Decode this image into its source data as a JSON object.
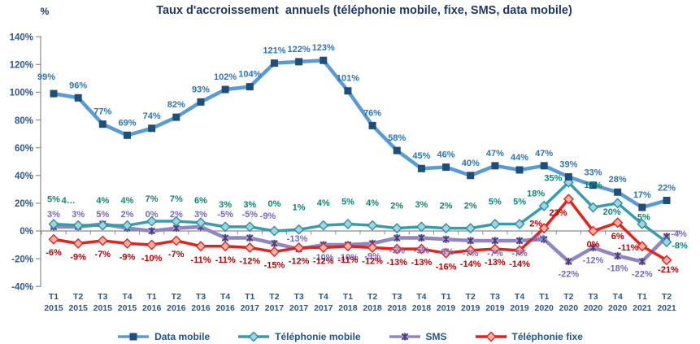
{
  "title": "Taux d'accroissement  annuels (téléphonie mobile, fixe, SMS, data mobile)",
  "y_axis_unit": "%",
  "colors": {
    "title_text": "#1F3864",
    "axis_text": "#2A5793",
    "axis_line": "#8C8C8C"
  },
  "chart_data": {
    "type": "line",
    "title": "Taux d'accroissement  annuels (téléphonie mobile, fixe, SMS, data mobile)",
    "xlabel": "",
    "ylabel": "%",
    "ylim": [
      -40,
      140
    ],
    "y_tick_step": 20,
    "y_tick_suffix": "%",
    "grid": false,
    "legend_position": "bottom",
    "x_labels_line1": [
      "T1",
      "T2",
      "T3",
      "T4",
      "T1",
      "T2",
      "T3",
      "T4",
      "T1",
      "T2",
      "T3",
      "T4",
      "T1",
      "T2",
      "T3",
      "T4",
      "T1",
      "T2",
      "T3",
      "T4",
      "T1",
      "T2",
      "T3",
      "T4",
      "T1",
      "T2"
    ],
    "x_labels_line2": [
      "2015",
      "2015",
      "2015",
      "2015",
      "2016",
      "2016",
      "2016",
      "2016",
      "2017",
      "2017",
      "2017",
      "2017",
      "2018",
      "2018",
      "2018",
      "2018",
      "2019",
      "2019",
      "2019",
      "2019",
      "2020",
      "2020",
      "2020",
      "2020",
      "2021",
      "2021"
    ],
    "series": [
      {
        "id": "data_mobile",
        "name": "Data mobile",
        "line_color": "#5B9BD5",
        "marker": "square",
        "marker_fill": "#1F4E79",
        "marker_stroke": "#1F4E79",
        "label_color": "#2E74B5",
        "values": [
          99,
          96,
          77,
          69,
          74,
          82,
          93,
          102,
          104,
          121,
          122,
          123,
          101,
          76,
          58,
          45,
          46,
          40,
          47,
          44,
          47,
          39,
          33,
          28,
          17,
          22
        ],
        "labels": [
          "99%",
          "96%",
          "77%",
          "69%",
          "74%",
          "82%",
          "93%",
          "102%",
          "104%",
          "121%",
          "122%",
          "123%",
          "101%",
          "76%",
          "58%",
          "45%",
          "46%",
          "40%",
          "47%",
          "44%",
          "47%",
          "39%",
          "33%",
          "28%",
          "17%",
          "22%"
        ]
      },
      {
        "id": "tel_mobile",
        "name": "Téléphonie mobile",
        "line_color": "#359DAD",
        "marker": "diamond",
        "marker_fill": "#9FD5DE",
        "marker_stroke": "#2E8FA0",
        "label_color": "#0E8575",
        "values": [
          5,
          4,
          4,
          4,
          7,
          7,
          6,
          3,
          3,
          0,
          1,
          4,
          5,
          4,
          2,
          3,
          2,
          2,
          5,
          5,
          18,
          35,
          17,
          20,
          5,
          -8
        ],
        "labels": [
          "5%",
          "4…",
          "4%",
          "4%",
          "7%",
          "7%",
          "6%",
          "3%",
          "3%",
          "0%",
          "1%",
          "4%",
          "5%",
          "4%",
          "2%",
          "3%",
          "2%",
          "2%",
          "5%",
          "5%",
          "18%",
          "35%",
          "17%",
          "20%",
          "5%",
          "-8%"
        ]
      },
      {
        "id": "sms",
        "name": "SMS",
        "line_color": "#9185C2",
        "marker": "xstar",
        "marker_fill": "#A79BD0",
        "marker_stroke": "#4A3B76",
        "label_color": "#7666C4",
        "values": [
          3,
          3,
          5,
          2,
          0,
          2,
          3,
          -5,
          -5,
          -9,
          -13,
          -10,
          -10,
          -9,
          -5,
          -5,
          -6,
          -7,
          -7,
          -7,
          -6,
          -22,
          -12,
          -18,
          -22,
          -4
        ],
        "labels": [
          "3%",
          "3%",
          "5%",
          "2%",
          "0%",
          "2%",
          "3%",
          "-5%",
          "-5%",
          "-9%",
          "-13%",
          "-10%",
          "-10%",
          "-9%",
          "-5%",
          "-5%",
          "-6%",
          "-7%",
          "-7%",
          "-7%",
          "-6%",
          "-22%",
          "-12%",
          "-18%",
          "-22%",
          "-4%"
        ]
      },
      {
        "id": "tel_fixe",
        "name": "Téléphonie fixe",
        "line_color": "#E32219",
        "marker": "diamond",
        "marker_fill": "#F5AFA9",
        "marker_stroke": "#E0251B",
        "label_color": "#C00000",
        "values": [
          -6,
          -9,
          -7,
          -9,
          -10,
          -7,
          -11,
          -11,
          -12,
          -15,
          -12,
          -12,
          -11,
          -12,
          -13,
          -13,
          -16,
          -14,
          -13,
          -14,
          2,
          23,
          0,
          6,
          -11,
          -21
        ],
        "labels": [
          "-6%",
          "-9%",
          "-7%",
          "-9%",
          "-10%",
          "-7%",
          "-11%",
          "-11%",
          "-12%",
          "-15%",
          "-12%",
          "-12%",
          "-11%",
          "-12%",
          "-13%",
          "-13%",
          "-16%",
          "-14%",
          "-13%",
          "-14%",
          "2%",
          "23%",
          "0%",
          "6%",
          "-11%",
          "-21%"
        ]
      }
    ]
  }
}
